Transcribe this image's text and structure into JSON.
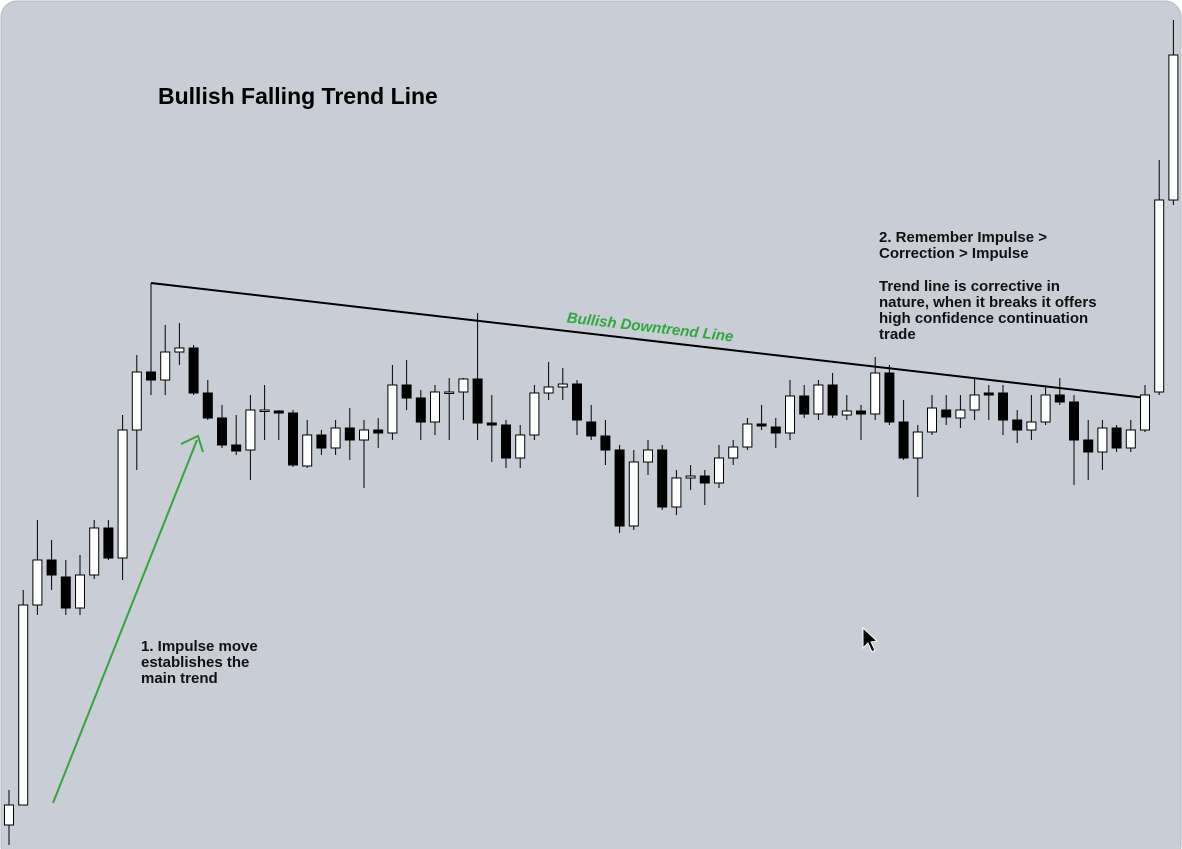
{
  "chart_data": {
    "type": "candlestick",
    "title": "Bullish Falling Trend Line",
    "trendline_label": "Bullish Downtrend Line",
    "annotations": [
      {
        "lines": [
          "1. Impulse move",
          "establishes the",
          "main trend"
        ]
      },
      {
        "lines": [
          "2. Remember Impulse >",
          "Correction > Impulse"
        ]
      },
      {
        "lines": [
          "Trend line is corrective in",
          "nature, when it breaks it offers",
          "high confidence continuation",
          "trade"
        ]
      }
    ],
    "up_color": "#ffffff",
    "down_color": "#000000",
    "wick_color": "#000000",
    "ylim": [
      0,
      849
    ],
    "open": [
      24,
      44,
      244,
      289,
      272,
      241,
      274,
      321,
      291,
      419,
      477,
      469,
      497,
      501,
      456,
      431,
      404,
      399,
      438,
      438,
      436,
      383,
      414,
      401,
      421,
      409,
      419,
      416,
      464,
      451,
      427,
      456,
      457,
      470,
      426,
      424,
      391,
      414,
      456,
      462,
      465,
      427,
      413,
      399,
      323,
      387,
      399,
      342,
      371,
      373,
      366,
      391,
      402,
      425,
      422,
      416,
      453,
      435,
      464,
      434,
      438,
      435,
      476,
      427,
      391,
      417,
      439,
      431,
      439,
      456,
      456,
      429,
      419,
      427,
      454,
      447,
      409,
      397,
      421,
      401,
      419,
      457,
      649
    ],
    "high": [
      59,
      259,
      329,
      309,
      289,
      294,
      329,
      329,
      434,
      494,
      566,
      524,
      526,
      504,
      469,
      444,
      434,
      454,
      464,
      439,
      439,
      429,
      419,
      429,
      441,
      429,
      431,
      484,
      489,
      459,
      464,
      471,
      471,
      536,
      454,
      429,
      424,
      464,
      487,
      481,
      469,
      444,
      429,
      404,
      399,
      409,
      404,
      379,
      384,
      379,
      404,
      409,
      431,
      444,
      431,
      469,
      464,
      469,
      476,
      454,
      444,
      492,
      484,
      449,
      424,
      454,
      454,
      454,
      471,
      464,
      464,
      439,
      454,
      464,
      471,
      454,
      429,
      429,
      424,
      429,
      464,
      689,
      829
    ],
    "low": [
      4,
      44,
      234,
      259,
      234,
      234,
      270,
      289,
      269,
      379,
      454,
      454,
      484,
      454,
      429,
      401,
      394,
      369,
      409,
      409,
      382,
      381,
      394,
      394,
      389,
      361,
      401,
      409,
      439,
      409,
      414,
      409,
      429,
      409,
      387,
      381,
      381,
      409,
      449,
      449,
      414,
      409,
      384,
      316,
      319,
      374,
      339,
      334,
      359,
      344,
      361,
      384,
      399,
      419,
      401,
      409,
      431,
      429,
      431,
      429,
      409,
      429,
      424,
      389,
      352,
      414,
      424,
      421,
      429,
      429,
      414,
      406,
      409,
      424,
      444,
      364,
      369,
      379,
      397,
      397,
      417,
      454,
      644
    ],
    "close": [
      44,
      244,
      289,
      274,
      241,
      274,
      321,
      291,
      419,
      477,
      469,
      497,
      501,
      456,
      431,
      404,
      398,
      439,
      439,
      436,
      384,
      414,
      401,
      421,
      409,
      419,
      416,
      464,
      451,
      427,
      457,
      457,
      470,
      426,
      424,
      391,
      414,
      456,
      462,
      465,
      429,
      413,
      399,
      323,
      387,
      399,
      342,
      371,
      373,
      366,
      391,
      402,
      425,
      423,
      416,
      453,
      435,
      464,
      434,
      438,
      435,
      476,
      427,
      391,
      417,
      441,
      432,
      439,
      454,
      454,
      429,
      419,
      427,
      454,
      447,
      409,
      397,
      421,
      401,
      419,
      454,
      649,
      794
    ]
  }
}
